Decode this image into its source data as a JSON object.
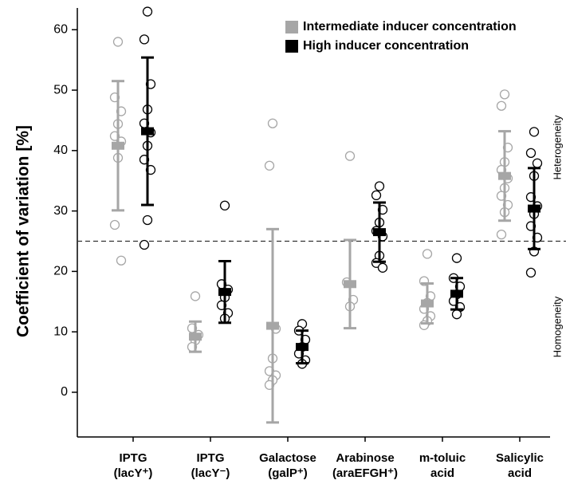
{
  "chart_data": {
    "type": "dot-errorbar",
    "y_label": "Coefficient of variation [%]",
    "categories": [
      [
        "IPTG",
        "(lacY⁺)"
      ],
      [
        "IPTG",
        "(lacY⁻)"
      ],
      [
        "Galactose",
        "(galP⁺)"
      ],
      [
        "Arabinose",
        "(araEFGH⁺)"
      ],
      [
        "m-toluic",
        "acid"
      ],
      [
        "Salicylic",
        "acid"
      ]
    ],
    "ylim": [
      -7.4,
      63.6
    ],
    "yticks": [
      0,
      10,
      20,
      30,
      40,
      50,
      60
    ],
    "threshold": 25,
    "annotations": [
      "Heterogeneity",
      "Homogeneity"
    ],
    "series": [
      {
        "name": "Intermediate inducer concentration",
        "color": "#a6a6a6",
        "means": [
          40.8,
          9.2,
          11.0,
          17.9,
          14.7,
          35.8
        ],
        "sds": [
          10.7,
          2.5,
          16.0,
          7.3,
          3.3,
          7.4
        ],
        "points": [
          [
            58,
            48.8,
            46.5,
            44.4,
            42.4,
            41.5,
            38.8,
            27.7,
            21.8
          ],
          [
            15.9,
            10.6,
            9.5,
            8.6,
            7.5
          ],
          [
            44.5,
            37.5,
            10.5,
            5.6,
            3.5,
            2.8,
            2.0,
            1.2
          ],
          [
            39.1,
            18.2,
            15.3,
            14.2
          ],
          [
            22.9,
            18.4,
            15.9,
            14.8,
            13.8,
            12.6,
            11.8,
            11.1
          ],
          [
            49.3,
            47.4,
            40.5,
            38.1,
            36.8,
            35.4,
            33.8,
            32.5,
            31.0,
            29.8,
            26.1
          ]
        ]
      },
      {
        "name": "High inducer concentration",
        "color": "#000000",
        "means": [
          43.2,
          16.6,
          7.5,
          26.5,
          16.3,
          30.4
        ],
        "sds": [
          12.2,
          5.1,
          2.7,
          4.9,
          2.6,
          6.7
        ],
        "points": [
          [
            63,
            58.4,
            51,
            46.8,
            44.5,
            43.0,
            40.8,
            38.5,
            36.8,
            28.5,
            24.4
          ],
          [
            30.9,
            17.9,
            17.0,
            15.7,
            14.4,
            13.1,
            12.2
          ],
          [
            11.3,
            10.2,
            8.7,
            7.5,
            6.4,
            5.3,
            4.7
          ],
          [
            34.1,
            32.6,
            30.2,
            28.1,
            26.7,
            25.8,
            22.6,
            21.4,
            20.6
          ],
          [
            22.2,
            18.9,
            17.5,
            16.2,
            15.1,
            14.1,
            12.9
          ],
          [
            43.1,
            39.6,
            37.9,
            35.8,
            32.3,
            30.8,
            29.5,
            27.5,
            25.6,
            23.3,
            19.8
          ]
        ]
      }
    ]
  }
}
